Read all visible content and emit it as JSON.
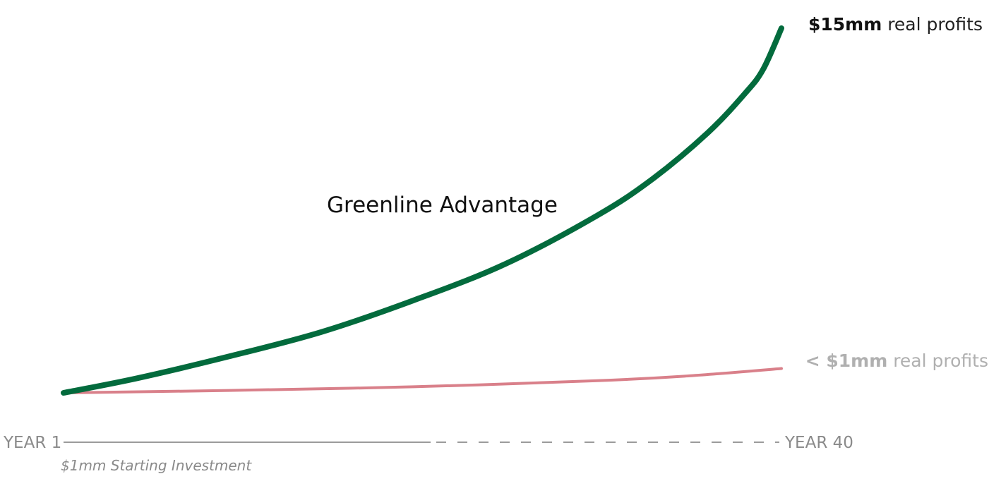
{
  "chart_data": {
    "type": "line",
    "title": "",
    "xlabel": "",
    "ylabel": "",
    "x_range": [
      1,
      40
    ],
    "x_tick_labels": {
      "start": "YEAR 1",
      "end": "YEAR 40"
    },
    "annotation": "Greenline Advantage",
    "footnote": "$1mm Starting Investment",
    "grid": false,
    "series": [
      {
        "key": "greenline",
        "end_label_bold": "$15mm",
        "end_label_rest": " real profits",
        "color": "#036b3d",
        "x": [
          1,
          5,
          10,
          15,
          20,
          25,
          30,
          33,
          36,
          38,
          39,
          40
        ],
        "y": [
          0,
          0.6,
          1.5,
          2.5,
          3.8,
          5.3,
          7.3,
          8.8,
          10.7,
          12.3,
          13.3,
          15
        ]
      },
      {
        "key": "conventional",
        "end_label_bold": "< $1mm",
        "end_label_rest": " real profits",
        "color": "#d9808a",
        "x": [
          1,
          10,
          20,
          30,
          35,
          40
        ],
        "y": [
          0,
          0.1,
          0.25,
          0.5,
          0.7,
          1.0
        ]
      }
    ],
    "colors": {
      "axis_line": "#9b9b9b",
      "end_label_green": "#111111",
      "end_label_pink": "#b0b0b0",
      "axis_text": "#8a8a8a"
    }
  }
}
